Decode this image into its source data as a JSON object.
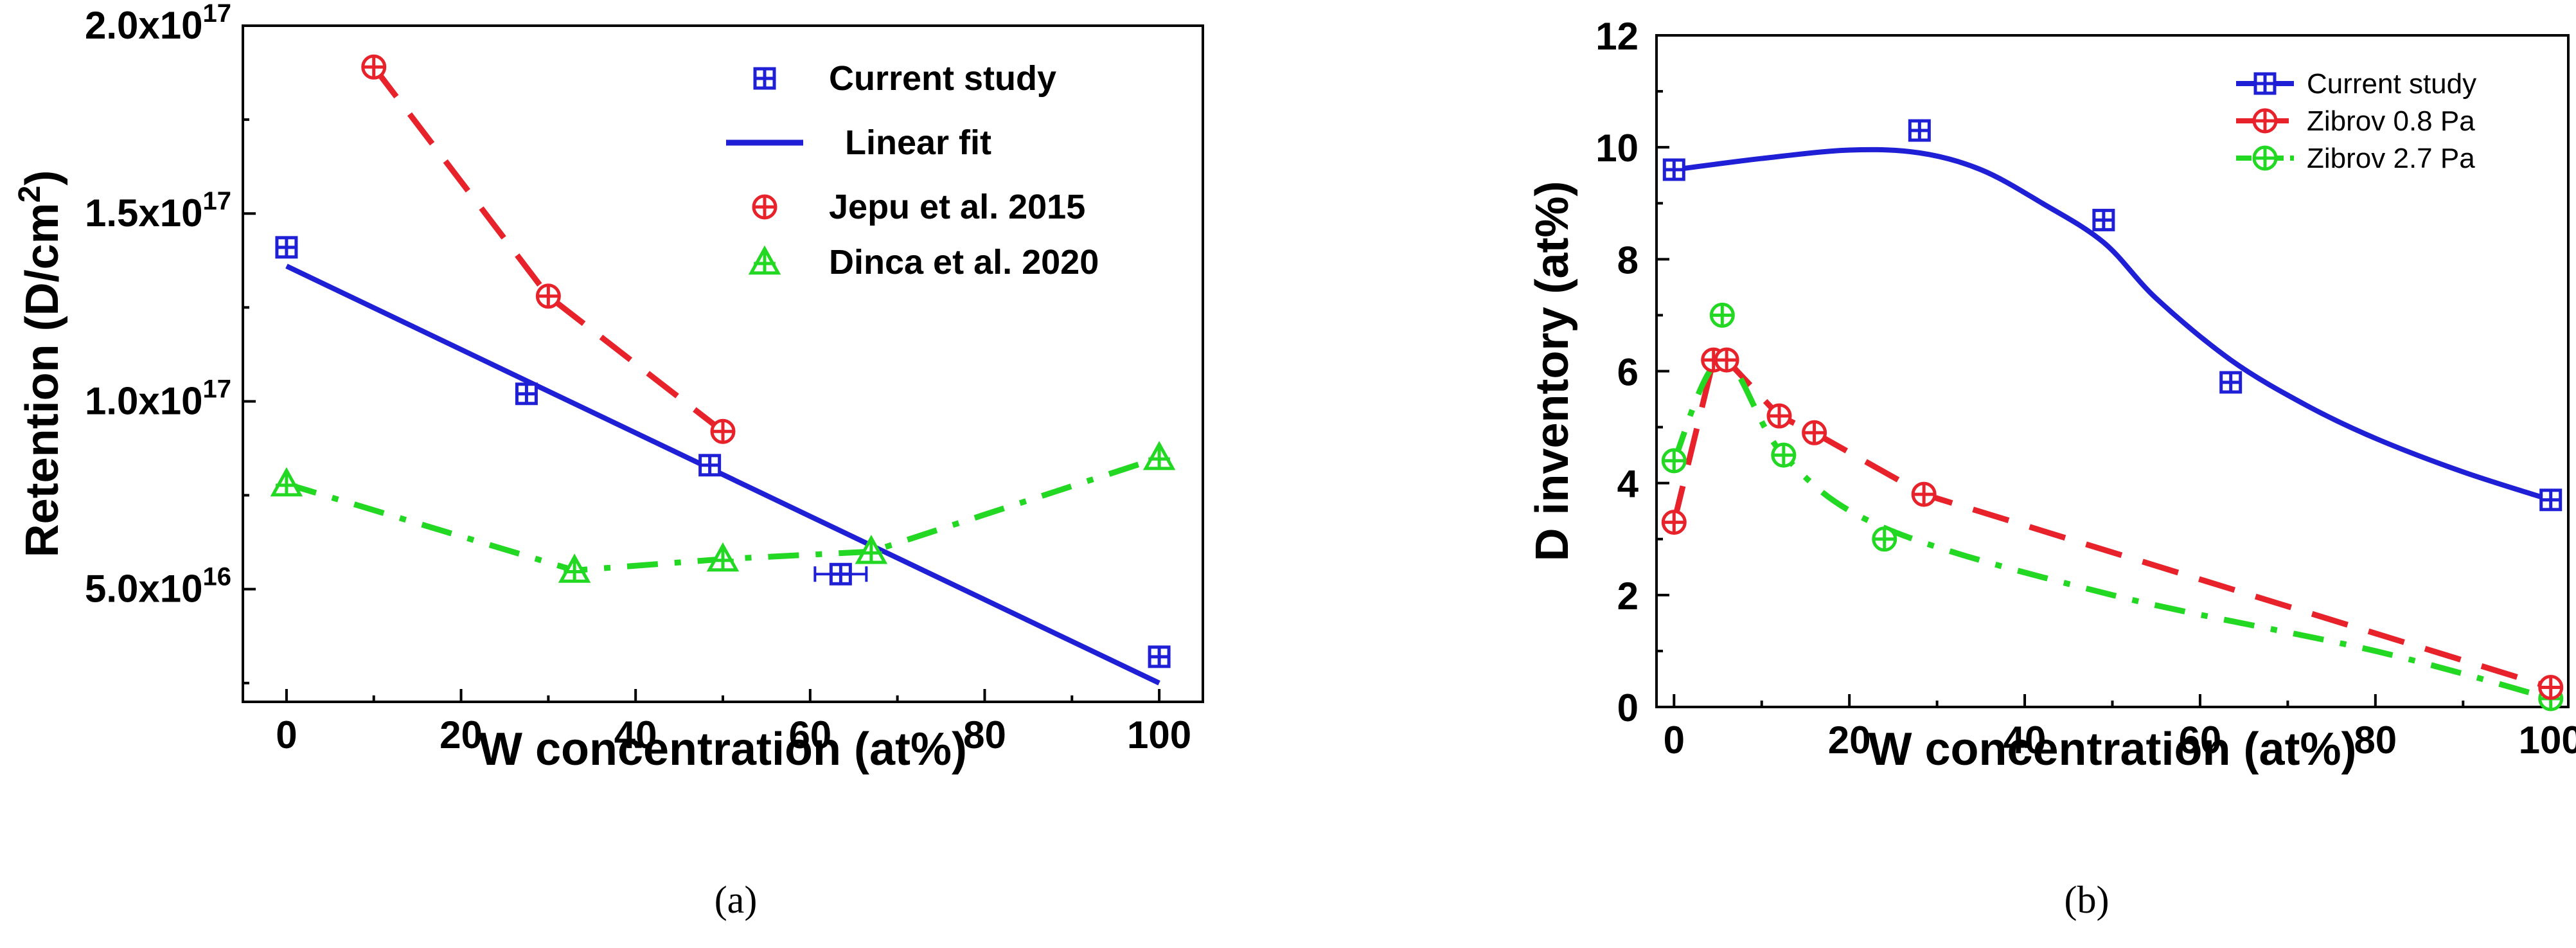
{
  "chart_data": [
    {
      "type": "scatter",
      "caption": "(a)",
      "xlabel": "W concentration (at%)",
      "ylabel_main": "Retention (D/cm",
      "ylabel_sup": "2",
      "ylabel_end": ")",
      "xlim": [
        -5,
        105
      ],
      "ylim": [
        2e+16,
        2e+17
      ],
      "xticks": [
        0,
        20,
        40,
        60,
        80,
        100
      ],
      "yticks": [
        {
          "value": 5e+16,
          "mant": "5.0x10",
          "exp": "16"
        },
        {
          "value": 1e+17,
          "mant": "1.0x10",
          "exp": "17"
        },
        {
          "value": 1.5e+17,
          "mant": "1.5x10",
          "exp": "17"
        },
        {
          "value": 2e+17,
          "mant": "2.0x10",
          "exp": "17"
        }
      ],
      "series": [
        {
          "name": "Current study",
          "color": "#1f1fd6",
          "marker": "square-plus",
          "line": "none",
          "x": [
            0,
            27.5,
            48.5,
            63.5,
            100
          ],
          "y": [
            1.41e+17,
            1.02e+17,
            8.3e+16,
            5.4e+16,
            3.2e+16
          ]
        },
        {
          "name": "Linear fit",
          "color": "#1f1fd6",
          "marker": "none",
          "line": "solid",
          "x": [
            0,
            100
          ],
          "y": [
            1.36e+17,
            2.5e+16
          ]
        },
        {
          "name": "Jepu et al. 2015",
          "color": "#e8222a",
          "marker": "circle-plus",
          "line": "dash",
          "x": [
            10,
            30,
            50
          ],
          "y": [
            1.89e+17,
            1.28e+17,
            9.2e+16
          ]
        },
        {
          "name": "Dinca et al. 2020",
          "color": "#22d822",
          "marker": "triangle-plus",
          "line": "dashdot",
          "x": [
            0,
            33,
            50,
            67,
            100
          ],
          "y": [
            7.8e+16,
            5.5e+16,
            5.8e+16,
            6e+16,
            8.5e+16
          ]
        }
      ]
    },
    {
      "type": "line",
      "caption": "(b)",
      "xlabel": "W concentration (at%)",
      "ylabel": "D inventory (at%)",
      "xlim": [
        -2,
        102
      ],
      "ylim": [
        0,
        12
      ],
      "xticks": [
        0,
        20,
        40,
        60,
        80,
        100
      ],
      "yticks": [
        0,
        2,
        4,
        6,
        8,
        10,
        12
      ],
      "series": [
        {
          "name": "Current study",
          "color": "#1f1fd6",
          "marker": "square-plus",
          "line": "solid",
          "x": [
            0,
            28,
            49,
            63.5,
            100
          ],
          "y": [
            9.6,
            10.3,
            8.7,
            5.8,
            3.7
          ],
          "fit": [
            [
              0,
              9.6
            ],
            [
              10,
              9.8
            ],
            [
              20,
              9.95
            ],
            [
              28,
              9.9
            ],
            [
              35,
              9.6
            ],
            [
              42,
              9.0
            ],
            [
              49,
              8.3
            ],
            [
              55,
              7.3
            ],
            [
              63.5,
              6.2
            ],
            [
              72,
              5.4
            ],
            [
              80,
              4.8
            ],
            [
              90,
              4.2
            ],
            [
              100,
              3.7
            ]
          ]
        },
        {
          "name": "Zibrov 0.8 Pa",
          "color": "#e8222a",
          "marker": "circle-plus",
          "line": "dash",
          "x": [
            0,
            4.5,
            6,
            12,
            16,
            28.5,
            100
          ],
          "y": [
            3.3,
            6.2,
            6.2,
            5.2,
            4.9,
            3.8,
            0.35
          ]
        },
        {
          "name": "Zibrov 2.7 Pa",
          "color": "#22d822",
          "marker": "circle-plus",
          "line": "dashdot",
          "x": [
            0,
            5.5,
            12.5,
            24,
            100
          ],
          "y": [
            4.4,
            7.0,
            4.5,
            3.0,
            0.15
          ],
          "path": [
            [
              0,
              4.4
            ],
            [
              5.5,
              6.2
            ],
            [
              12.5,
              4.5
            ],
            [
              24,
              3.2
            ],
            [
              50,
              2.0
            ],
            [
              80,
              1.0
            ],
            [
              100,
              0.15
            ]
          ]
        }
      ]
    }
  ]
}
